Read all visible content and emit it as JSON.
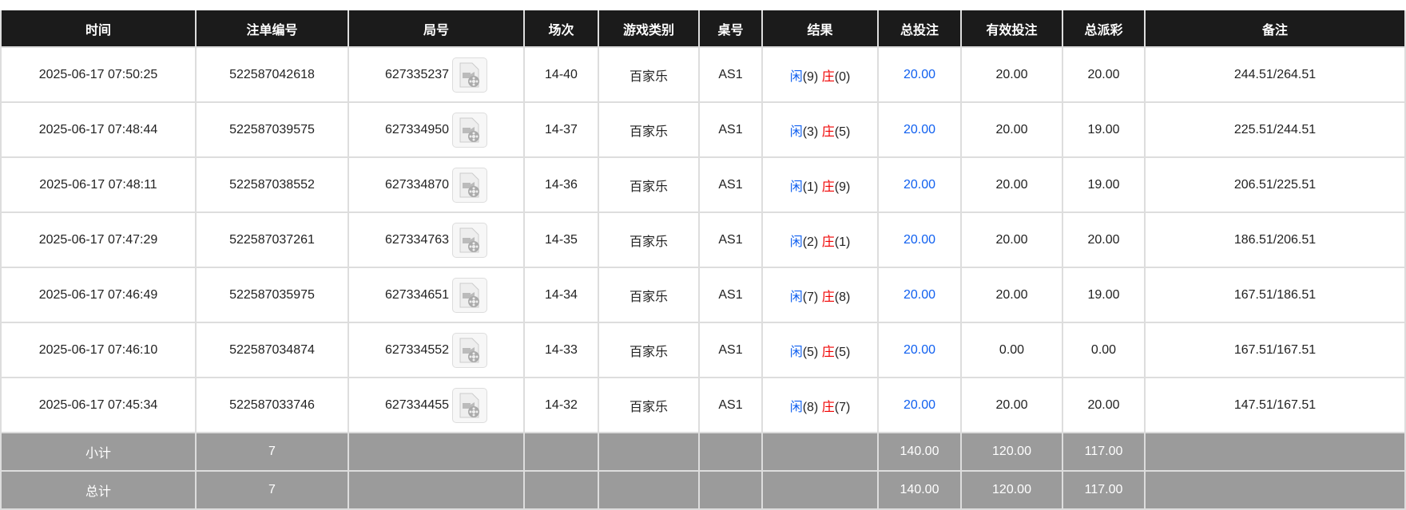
{
  "headers": [
    "时间",
    "注单编号",
    "局号",
    "场次",
    "游戏类别",
    "桌号",
    "结果",
    "总投注",
    "有效投注",
    "总派彩",
    "备注"
  ],
  "rows": [
    {
      "time": "2025-06-17 07:50:25",
      "bet_id": "522587042618",
      "round": "627335237",
      "shoe": "14-40",
      "game": "百家乐",
      "table": "AS1",
      "player_label": "闲",
      "player": "(9)",
      "banker_label": "庄",
      "banker": "(0)",
      "total": "20.00",
      "valid": "20.00",
      "payout": "20.00",
      "note": "244.51/264.51"
    },
    {
      "time": "2025-06-17 07:48:44",
      "bet_id": "522587039575",
      "round": "627334950",
      "shoe": "14-37",
      "game": "百家乐",
      "table": "AS1",
      "player_label": "闲",
      "player": "(3)",
      "banker_label": "庄",
      "banker": "(5)",
      "total": "20.00",
      "valid": "20.00",
      "payout": "19.00",
      "note": "225.51/244.51"
    },
    {
      "time": "2025-06-17 07:48:11",
      "bet_id": "522587038552",
      "round": "627334870",
      "shoe": "14-36",
      "game": "百家乐",
      "table": "AS1",
      "player_label": "闲",
      "player": "(1)",
      "banker_label": "庄",
      "banker": "(9)",
      "total": "20.00",
      "valid": "20.00",
      "payout": "19.00",
      "note": "206.51/225.51"
    },
    {
      "time": "2025-06-17 07:47:29",
      "bet_id": "522587037261",
      "round": "627334763",
      "shoe": "14-35",
      "game": "百家乐",
      "table": "AS1",
      "player_label": "闲",
      "player": "(2)",
      "banker_label": "庄",
      "banker": "(1)",
      "total": "20.00",
      "valid": "20.00",
      "payout": "20.00",
      "note": "186.51/206.51"
    },
    {
      "time": "2025-06-17 07:46:49",
      "bet_id": "522587035975",
      "round": "627334651",
      "shoe": "14-34",
      "game": "百家乐",
      "table": "AS1",
      "player_label": "闲",
      "player": "(7)",
      "banker_label": "庄",
      "banker": "(8)",
      "total": "20.00",
      "valid": "20.00",
      "payout": "19.00",
      "note": "167.51/186.51"
    },
    {
      "time": "2025-06-17 07:46:10",
      "bet_id": "522587034874",
      "round": "627334552",
      "shoe": "14-33",
      "game": "百家乐",
      "table": "AS1",
      "player_label": "闲",
      "player": "(5)",
      "banker_label": "庄",
      "banker": "(5)",
      "total": "20.00",
      "valid": "0.00",
      "payout": "0.00",
      "note": "167.51/167.51"
    },
    {
      "time": "2025-06-17 07:45:34",
      "bet_id": "522587033746",
      "round": "627334455",
      "shoe": "14-32",
      "game": "百家乐",
      "table": "AS1",
      "player_label": "闲",
      "player": "(8)",
      "banker_label": "庄",
      "banker": "(7)",
      "total": "20.00",
      "valid": "20.00",
      "payout": "20.00",
      "note": "147.51/167.51"
    }
  ],
  "summary": [
    {
      "label": "小计",
      "count": "7",
      "total": "140.00",
      "valid": "120.00",
      "payout": "117.00"
    },
    {
      "label": "总计",
      "count": "7",
      "total": "140.00",
      "valid": "120.00",
      "payout": "117.00"
    }
  ],
  "icons": {
    "replay": "video-file-icon"
  },
  "colors": {
    "player": "#1060f0",
    "banker": "#f00000",
    "header_bg": "#1b1b1b",
    "summary_bg": "#9b9b9b"
  }
}
